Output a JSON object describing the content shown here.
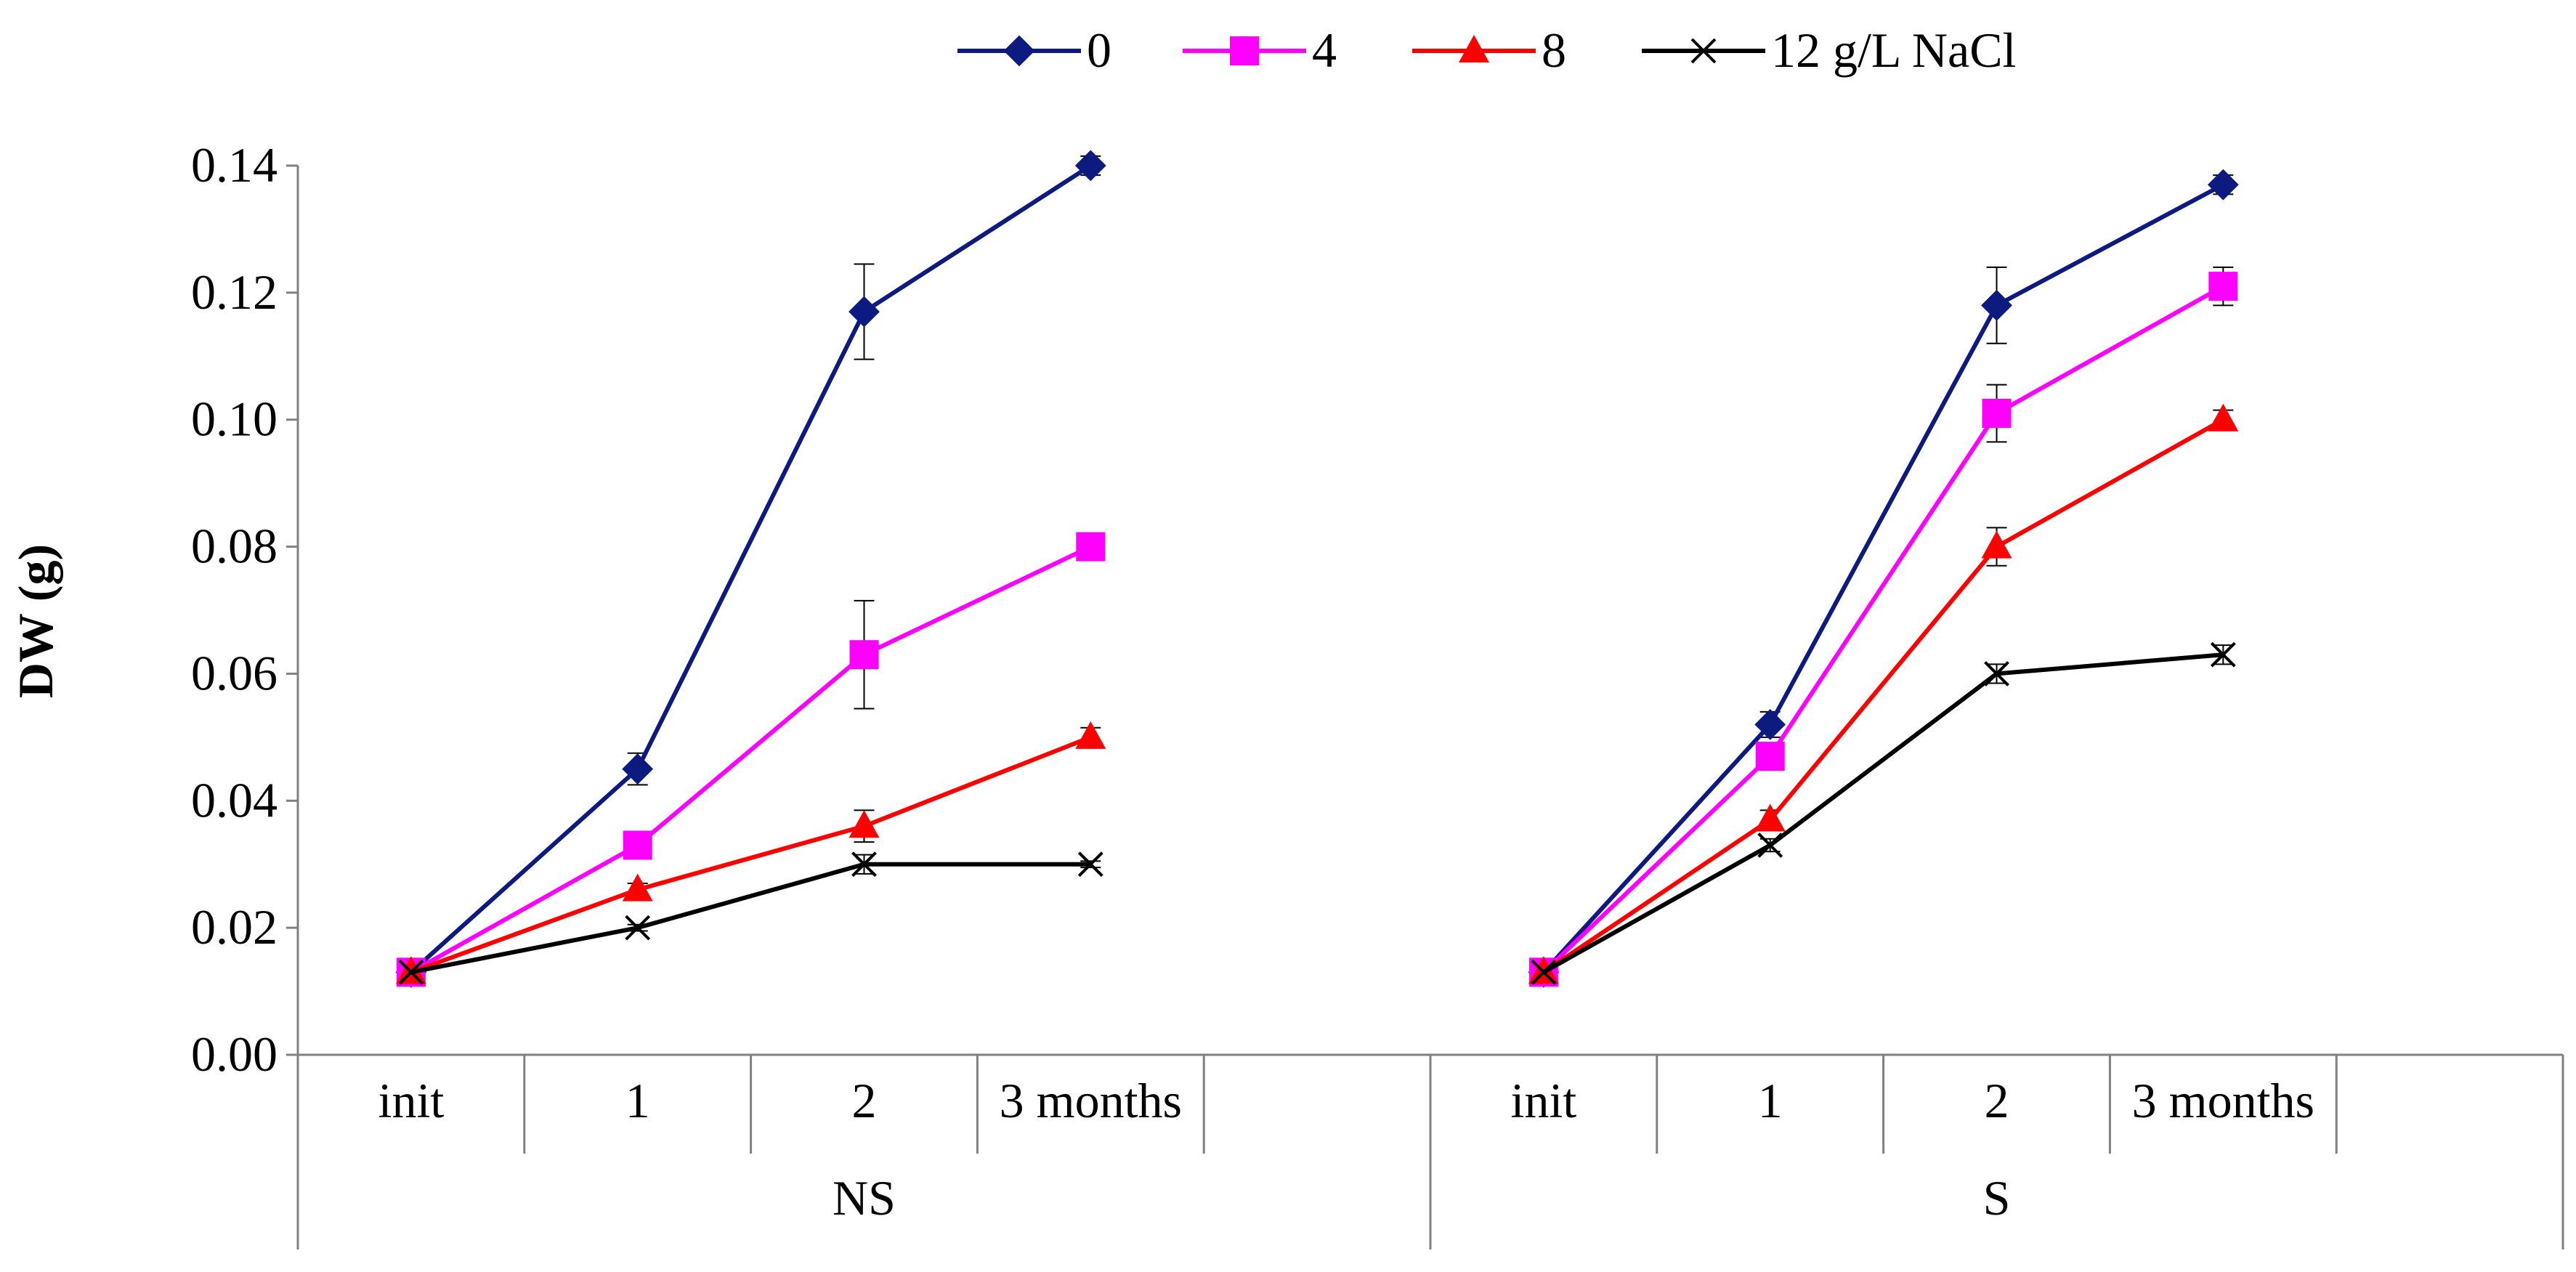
{
  "chart_data": {
    "type": "line",
    "ylabel": "DW (g)",
    "xlabel": "",
    "ylim": [
      0,
      0.14
    ],
    "yticks": [
      "0.00",
      "0.02",
      "0.04",
      "0.06",
      "0.08",
      "0.10",
      "0.12",
      "0.14"
    ],
    "ytick_values": [
      0,
      0.02,
      0.04,
      0.06,
      0.08,
      0.1,
      0.12,
      0.14
    ],
    "grid": false,
    "legend_position": "top-center",
    "groups": [
      {
        "name": "NS",
        "categories": [
          "init",
          "1",
          "2",
          "3 months"
        ]
      },
      {
        "name": "S",
        "categories": [
          "init",
          "1",
          "2",
          "3 months"
        ]
      }
    ],
    "series": [
      {
        "name": "0",
        "color": "#0d1a80",
        "marker": "diamond",
        "values": [
          [
            0.013,
            0.045,
            0.117,
            0.14
          ],
          [
            0.013,
            0.052,
            0.118,
            0.137
          ]
        ],
        "errors": [
          [
            0.0,
            0.0025,
            0.0075,
            0.0015
          ],
          [
            0.0,
            0.002,
            0.006,
            0.0015
          ]
        ]
      },
      {
        "name": "4",
        "color": "#ff00ff",
        "marker": "square",
        "values": [
          [
            0.013,
            0.033,
            0.063,
            0.08
          ],
          [
            0.013,
            0.047,
            0.101,
            0.121
          ]
        ],
        "errors": [
          [
            0.0,
            0.0015,
            0.0085,
            0.0015
          ],
          [
            0.0,
            0.002,
            0.0045,
            0.003
          ]
        ]
      },
      {
        "name": "8",
        "color": "#ff0000",
        "marker": "triangle",
        "values": [
          [
            0.013,
            0.026,
            0.036,
            0.05
          ],
          [
            0.013,
            0.037,
            0.08,
            0.1
          ]
        ],
        "errors": [
          [
            0.0,
            0.001,
            0.0025,
            0.0015
          ],
          [
            0.0,
            0.0015,
            0.003,
            0.0015
          ]
        ]
      },
      {
        "name": "12 g/L NaCl",
        "color": "#000000",
        "marker": "x",
        "values": [
          [
            0.013,
            0.02,
            0.03,
            0.03
          ],
          [
            0.013,
            0.033,
            0.06,
            0.063
          ]
        ],
        "errors": [
          [
            0.0,
            0.0005,
            0.0015,
            0.0005
          ],
          [
            0.0,
            0.001,
            0.0015,
            0.0015
          ]
        ]
      }
    ]
  }
}
